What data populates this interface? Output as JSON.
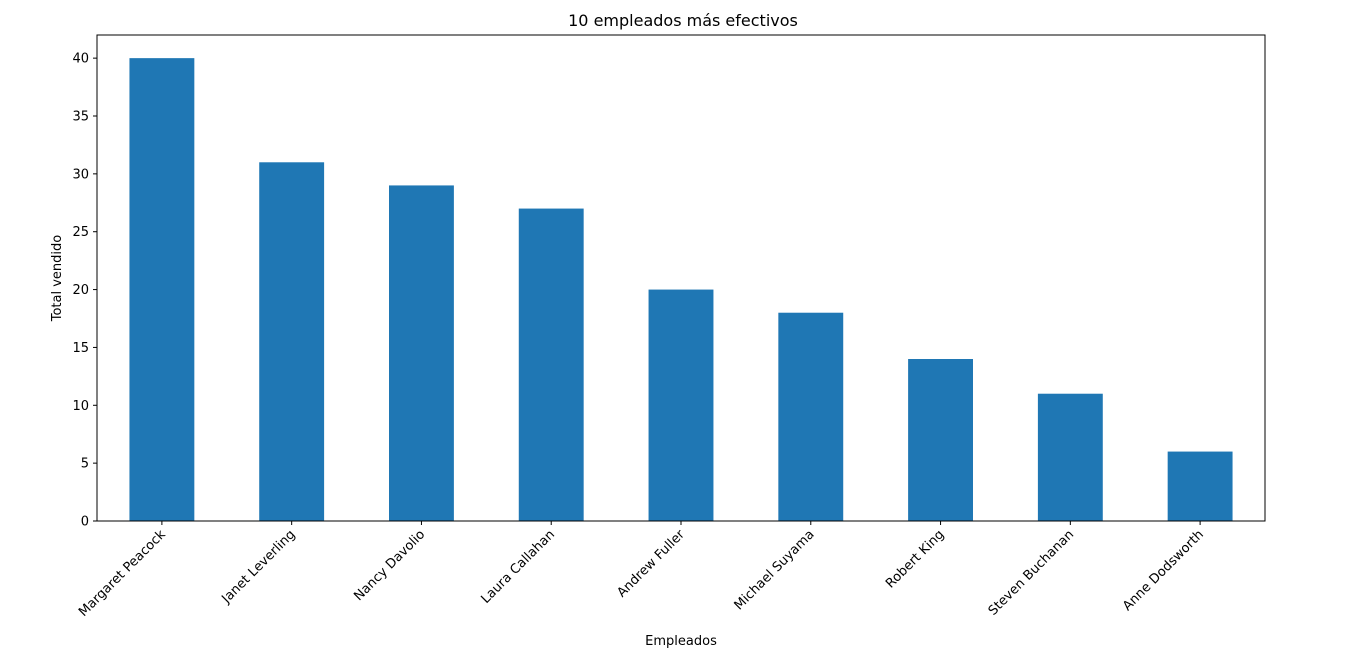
{
  "chart_data": {
    "type": "bar",
    "title": "10 empleados más efectivos",
    "xlabel": "Empleados",
    "ylabel": "Total vendido",
    "categories": [
      "Margaret Peacock",
      "Janet Leverling",
      "Nancy Davolio",
      "Laura Callahan",
      "Andrew Fuller",
      "Michael Suyama",
      "Robert King",
      "Steven Buchanan",
      "Anne Dodsworth"
    ],
    "values": [
      40,
      31,
      29,
      27,
      20,
      18,
      14,
      11,
      6
    ],
    "ylim": [
      0,
      42
    ],
    "yticks": [
      0,
      5,
      10,
      15,
      20,
      25,
      30,
      35,
      40
    ],
    "bar_color": "#1f77b4",
    "grid": false,
    "x_tick_rotation": -45
  }
}
